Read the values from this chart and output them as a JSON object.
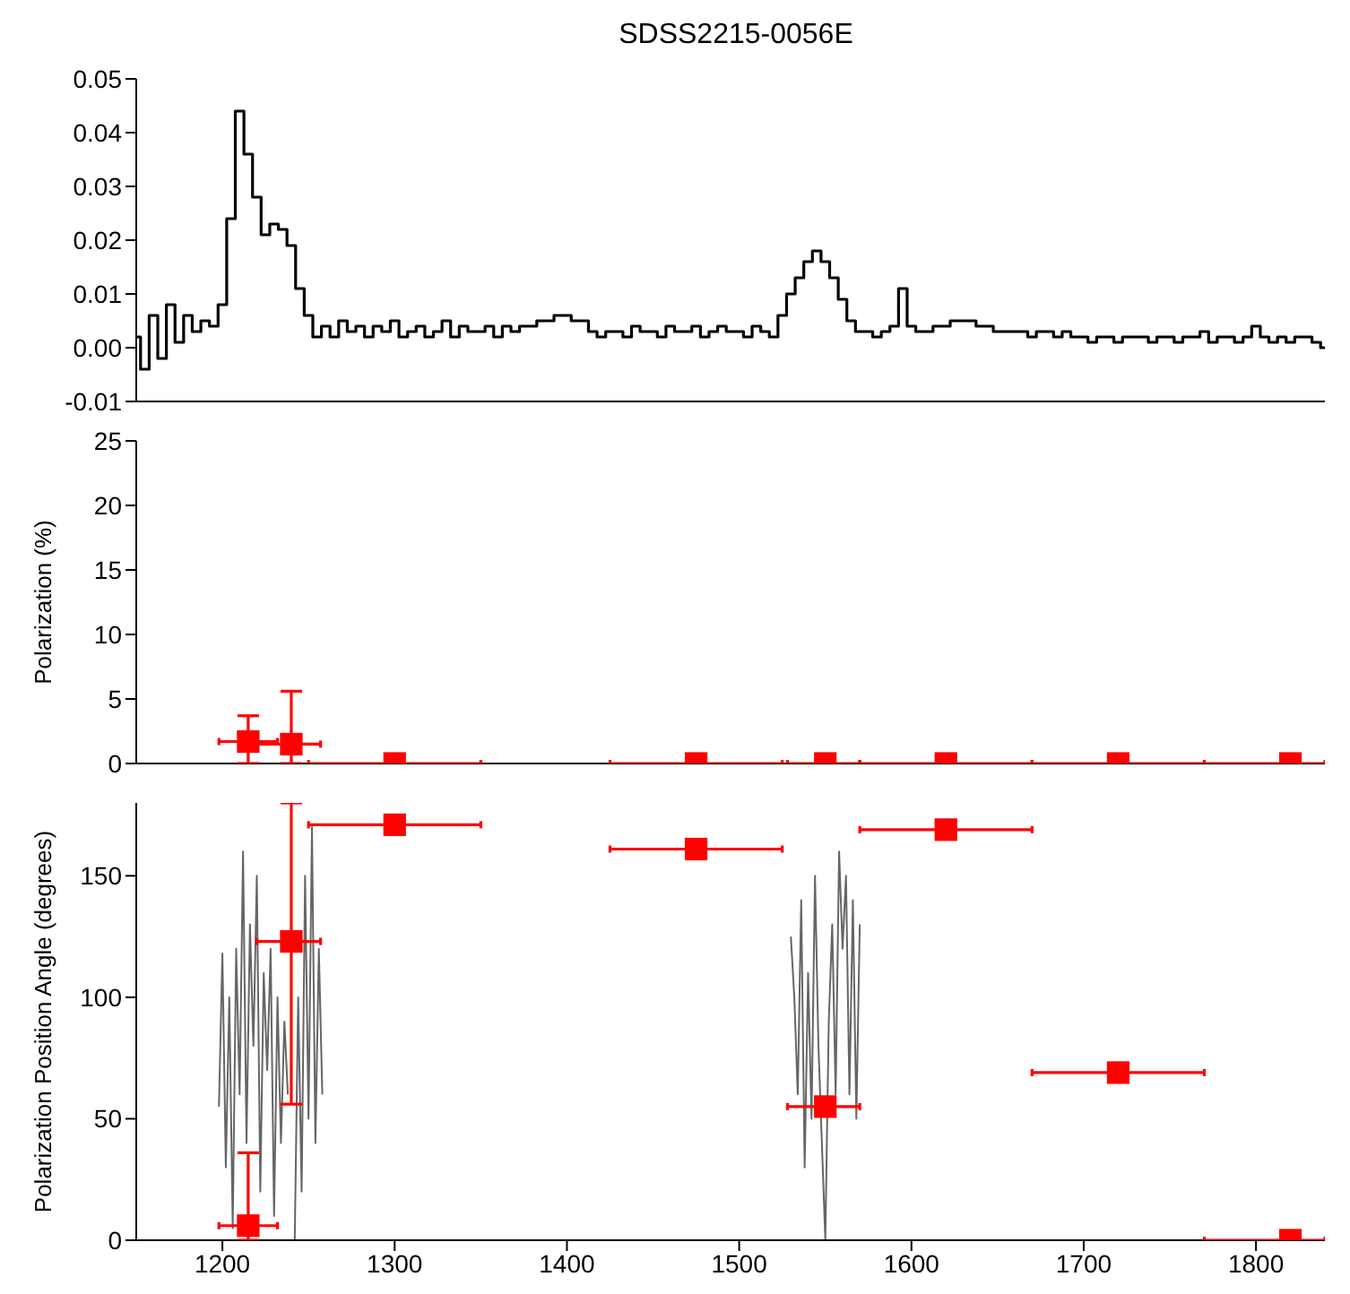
{
  "chart_data": [
    {
      "type": "step",
      "title": "SDSS2215-0056E",
      "xlim": [
        1150,
        1840
      ],
      "xticks": [
        1200,
        1300,
        1400,
        1500,
        1600,
        1700,
        1800
      ],
      "tick_labels": "y",
      "ylim": [
        -0.01,
        0.05
      ],
      "yticks": [
        {
          "value": -0.01,
          "label": "-0.01"
        },
        {
          "value": 0,
          "label": "0.00"
        },
        {
          "value": 0.01,
          "label": "0.01"
        },
        {
          "value": 0.02,
          "label": "0.02"
        },
        {
          "value": 0.03,
          "label": "0.03"
        },
        {
          "value": 0.04,
          "label": "0.04"
        },
        {
          "value": 0.05,
          "label": "0.05"
        }
      ],
      "x": [
        1150,
        1155,
        1160,
        1165,
        1170,
        1175,
        1180,
        1185,
        1190,
        1195,
        1200,
        1205,
        1210,
        1215,
        1220,
        1225,
        1230,
        1235,
        1240,
        1245,
        1250,
        1255,
        1260,
        1265,
        1270,
        1275,
        1280,
        1285,
        1290,
        1295,
        1300,
        1305,
        1310,
        1315,
        1320,
        1325,
        1330,
        1335,
        1340,
        1345,
        1350,
        1355,
        1360,
        1365,
        1370,
        1375,
        1380,
        1385,
        1390,
        1395,
        1400,
        1405,
        1410,
        1415,
        1420,
        1425,
        1430,
        1435,
        1440,
        1445,
        1450,
        1455,
        1460,
        1465,
        1470,
        1475,
        1480,
        1485,
        1490,
        1495,
        1500,
        1505,
        1510,
        1515,
        1520,
        1525,
        1530,
        1535,
        1540,
        1545,
        1550,
        1555,
        1560,
        1565,
        1570,
        1575,
        1580,
        1585,
        1590,
        1595,
        1600,
        1605,
        1610,
        1615,
        1620,
        1625,
        1630,
        1635,
        1640,
        1645,
        1650,
        1655,
        1660,
        1665,
        1670,
        1675,
        1680,
        1685,
        1690,
        1695,
        1700,
        1705,
        1710,
        1715,
        1720,
        1725,
        1730,
        1735,
        1740,
        1745,
        1750,
        1755,
        1760,
        1765,
        1770,
        1775,
        1780,
        1785,
        1790,
        1795,
        1800,
        1805,
        1810,
        1815,
        1820,
        1825,
        1830,
        1835,
        1840
      ],
      "series": [
        {
          "color": "#000000",
          "values": [
            0.002,
            -0.004,
            0.006,
            -0.002,
            0.008,
            0.001,
            0.006,
            0.003,
            0.005,
            0.004,
            0.008,
            0.024,
            0.044,
            0.036,
            0.028,
            0.021,
            0.023,
            0.022,
            0.019,
            0.011,
            0.006,
            0.002,
            0.004,
            0.002,
            0.005,
            0.003,
            0.004,
            0.002,
            0.004,
            0.003,
            0.005,
            0.002,
            0.003,
            0.004,
            0.002,
            0.003,
            0.005,
            0.002,
            0.004,
            0.003,
            0.003,
            0.004,
            0.002,
            0.004,
            0.003,
            0.004,
            0.004,
            0.005,
            0.005,
            0.006,
            0.006,
            0.005,
            0.005,
            0.003,
            0.002,
            0.003,
            0.003,
            0.002,
            0.004,
            0.003,
            0.003,
            0.002,
            0.004,
            0.003,
            0.003,
            0.004,
            0.002,
            0.003,
            0.004,
            0.003,
            0.003,
            0.002,
            0.004,
            0.003,
            0.002,
            0.006,
            0.01,
            0.013,
            0.016,
            0.018,
            0.016,
            0.013,
            0.009,
            0.005,
            0.003,
            0.003,
            0.002,
            0.003,
            0.004,
            0.011,
            0.004,
            0.003,
            0.003,
            0.004,
            0.004,
            0.005,
            0.005,
            0.005,
            0.004,
            0.004,
            0.003,
            0.003,
            0.003,
            0.003,
            0.002,
            0.003,
            0.003,
            0.002,
            0.003,
            0.002,
            0.002,
            0.001,
            0.002,
            0.002,
            0.001,
            0.002,
            0.002,
            0.002,
            0.001,
            0.002,
            0.002,
            0.001,
            0.002,
            0.002,
            0.003,
            0.001,
            0.002,
            0.002,
            0.001,
            0.002,
            0.004,
            0.002,
            0.001,
            0.002,
            0.001,
            0.002,
            0.002,
            0.001,
            0.0
          ]
        }
      ]
    },
    {
      "type": "scatter",
      "ylabel": "Polarization (%)",
      "xlim": [
        1150,
        1840
      ],
      "xticks": [
        1200,
        1300,
        1400,
        1500,
        1600,
        1700,
        1800
      ],
      "tick_labels": "y",
      "ylim": [
        0,
        25
      ],
      "yticks": [
        0,
        5,
        10,
        15,
        20,
        25
      ],
      "series": [
        {
          "color": "#ff0000",
          "marker": "square",
          "x": [
            1215,
            1240,
            1550
          ],
          "values": [
            1.7,
            1.5,
            0
          ],
          "errors": [
            [
              0,
              3.7
            ],
            [
              0,
              5.6
            ],
            null
          ],
          "xerrors": [
            [
              1198,
              1232
            ],
            [
              1220,
              1257
            ],
            [
              1528,
              1570
            ]
          ]
        },
        {
          "color": "#ff0000",
          "marker": "square",
          "x": [
            1300,
            1475,
            1620,
            1720,
            1820
          ],
          "values": [
            0,
            0,
            0,
            0,
            0
          ],
          "xerrors": [
            [
              1250,
              1350
            ],
            [
              1425,
              1525
            ],
            [
              1570,
              1670
            ],
            [
              1670,
              1770
            ],
            [
              1770,
              1840
            ]
          ]
        }
      ]
    },
    {
      "type": "scatter",
      "ylabel": "Polarization Position Angle (degrees)",
      "xlim": [
        1150,
        1840
      ],
      "xticks": [
        1200,
        1300,
        1400,
        1500,
        1600,
        1700,
        1800
      ],
      "ylim": [
        0,
        180
      ],
      "yticks": [
        0,
        50,
        100,
        150
      ],
      "series": [
        {
          "type": "line",
          "color": "#666666",
          "x": [
            1198,
            1200,
            1202,
            1204,
            1206,
            1208,
            1210,
            1212,
            1214,
            1216,
            1218,
            1220,
            1222,
            1224,
            1226,
            1228,
            1230,
            1232,
            1234,
            1236,
            1238,
            1240,
            1242,
            1244,
            1246,
            1248,
            1250,
            1252,
            1254,
            1256,
            1258,
            1400,
            1530,
            1532,
            1534,
            1536,
            1538,
            1540,
            1542,
            1544,
            1546,
            1548,
            1550,
            1552,
            1554,
            1556,
            1558,
            1560,
            1562,
            1564,
            1566,
            1568,
            1570
          ],
          "values": [
            55,
            118,
            30,
            100,
            5,
            120,
            60,
            160,
            40,
            130,
            80,
            150,
            20,
            110,
            70,
            120,
            10,
            100,
            40,
            90,
            60,
            null,
            0,
            100,
            20,
            150,
            50,
            170,
            40,
            120,
            60,
            null,
            125,
            100,
            60,
            140,
            30,
            110,
            50,
            150,
            80,
            40,
            0,
            90,
            130,
            60,
            160,
            120,
            150,
            60,
            140,
            50,
            130
          ]
        },
        {
          "color": "#ff0000",
          "marker": "square",
          "x": [
            1215,
            1240,
            1550
          ],
          "values": [
            6,
            123,
            55
          ],
          "errors": [
            [
              0,
              36
            ],
            [
              56,
              180
            ],
            null
          ],
          "xerrors": [
            [
              1198,
              1232
            ],
            [
              1220,
              1257
            ],
            [
              1528,
              1570
            ]
          ]
        },
        {
          "color": "#ff0000",
          "marker": "square",
          "x": [
            1300,
            1475,
            1620,
            1720,
            1820
          ],
          "values": [
            171,
            161,
            169,
            69,
            0
          ],
          "xerrors": [
            [
              1250,
              1350
            ],
            [
              1425,
              1525
            ],
            [
              1570,
              1670
            ],
            [
              1670,
              1770
            ],
            [
              1770,
              1840
            ]
          ]
        }
      ]
    }
  ]
}
